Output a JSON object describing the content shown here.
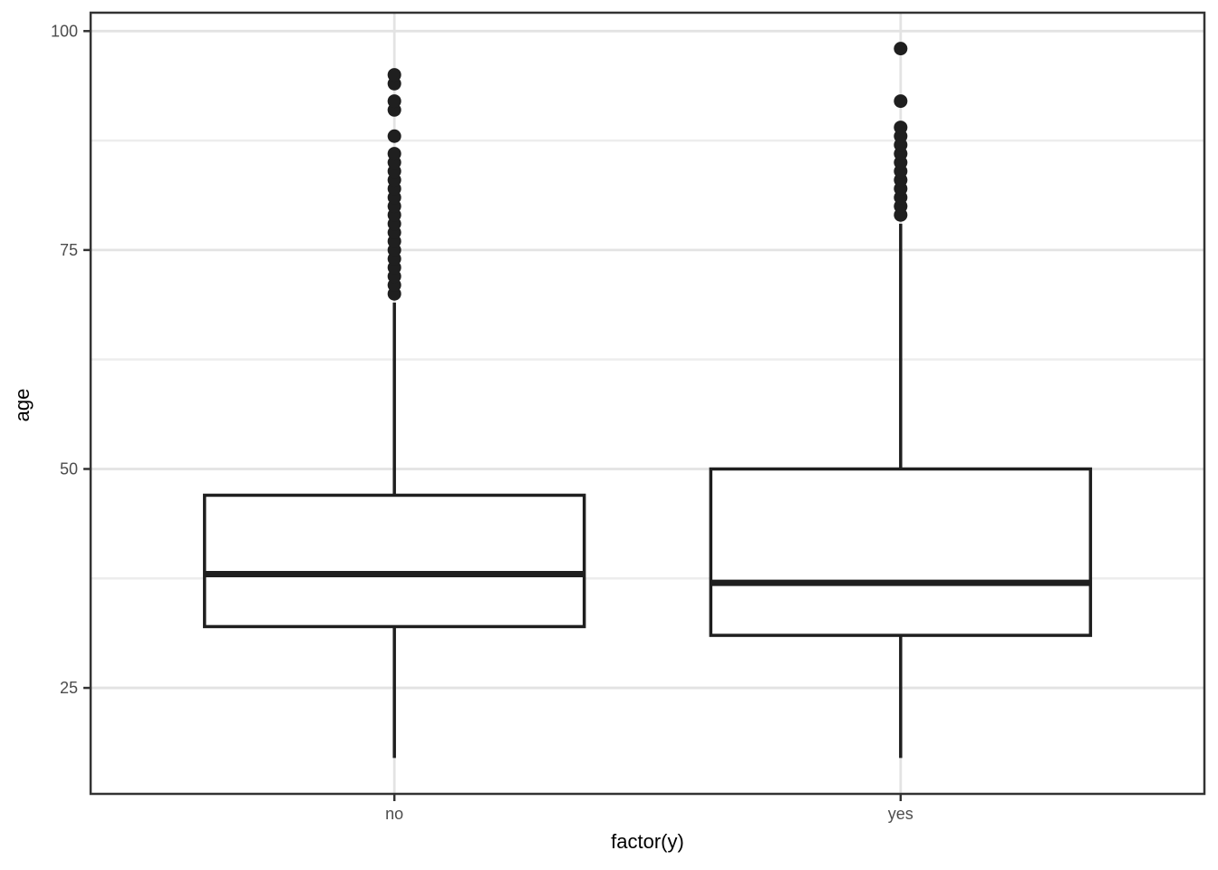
{
  "chart_data": {
    "type": "boxplot",
    "title": "",
    "xlabel": "factor(y)",
    "ylabel": "age",
    "categories": [
      "no",
      "yes"
    ],
    "y_ticks": [
      25,
      50,
      75,
      100
    ],
    "y_minor_gridlines": [
      37.5,
      62.5,
      87.5
    ],
    "ylim": [
      12.9,
      102.1
    ],
    "grid": "horizontal major+minor, vertical major at category centers",
    "legend_position": "none",
    "series": [
      {
        "category": "no",
        "whisker_low": 17,
        "q1": 32,
        "median": 38,
        "q3": 47,
        "whisker_high": 69,
        "outliers": [
          70,
          71,
          72,
          73,
          74,
          75,
          76,
          77,
          78,
          79,
          80,
          81,
          82,
          83,
          84,
          85,
          86,
          88,
          91,
          92,
          94,
          95
        ]
      },
      {
        "category": "yes",
        "whisker_low": 17,
        "q1": 31,
        "median": 37,
        "q3": 50,
        "whisker_high": 78,
        "outliers": [
          79,
          80,
          81,
          82,
          83,
          84,
          85,
          86,
          87,
          88,
          89,
          92,
          98
        ]
      }
    ],
    "colors": {
      "background": "#ffffff",
      "panel_background": "#ffffff",
      "panel_border": "#333333",
      "grid_major": "#e3e3e3",
      "grid_minor": "#ededed",
      "box_stroke": "#1f1f1f",
      "box_fill": "#ffffff",
      "median": "#1f1f1f",
      "whisker": "#1f1f1f",
      "outlier": "#1f1f1f",
      "tick_mark": "#333333",
      "axis_text": "#4d4d4d",
      "axis_title": "#000000"
    }
  }
}
